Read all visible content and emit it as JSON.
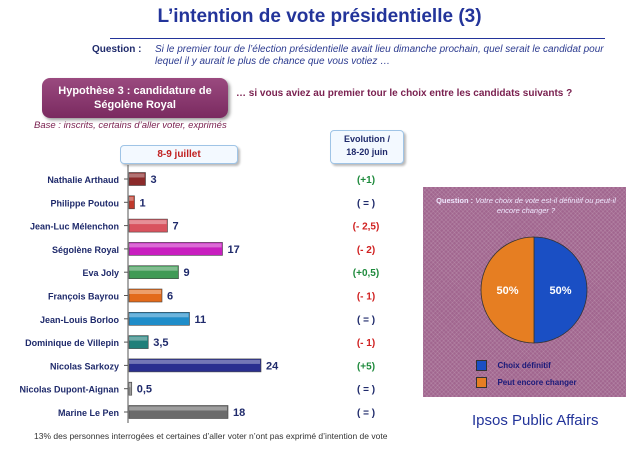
{
  "title": "L’intention de vote présidentielle (3)",
  "question": {
    "label": "Question :",
    "text": "Si le premier tour de l’élection présidentielle avait lieu dimanche prochain, quel serait le candidat pour lequel il y aurait le plus de chance que vous votiez …"
  },
  "hypothesis": {
    "line1": "Hypothèse 3 : candidature de",
    "line2": "Ségolène Royal",
    "prompt": "… si vous aviez au premier tour le choix entre les candidats suivants ?"
  },
  "base": "Base : inscrits, certains d’aller voter, exprimés",
  "date_label": "8-9 juillet",
  "evolution_label": {
    "line1": "Evolution /",
    "line2": "18-20 juin"
  },
  "chart_data": [
    {
      "type": "bar",
      "orientation": "horizontal",
      "categories": [
        "Nathalie Arthaud",
        "Philippe Poutou",
        "Jean-Luc Mélenchon",
        "Ségolène Royal",
        "Eva Joly",
        "François Bayrou",
        "Jean-Louis Borloo",
        "Dominique de Villepin",
        "Nicolas Sarkozy",
        "Nicolas Dupont-Aignan",
        "Marine Le Pen"
      ],
      "values": [
        3,
        1,
        7,
        17,
        9,
        6,
        11,
        3.5,
        24,
        0.5,
        18
      ],
      "value_labels": [
        "3",
        "1",
        "7",
        "17",
        "9",
        "6",
        "11",
        "3,5",
        "24",
        "0,5",
        "18"
      ],
      "colors": [
        "#8b2a2a",
        "#c0392b",
        "#d9535e",
        "#c81ebf",
        "#3f9a55",
        "#e36a1b",
        "#1f8dc9",
        "#1f7f7a",
        "#2a2f8f",
        "#9a9a9a",
        "#6b6b6b"
      ],
      "evolution": [
        "(+1)",
        "( = )",
        "(- 2,5)",
        "(- 2)",
        "(+0,5)",
        "(- 1)",
        "( = )",
        "(- 1)",
        "(+5)",
        "( = )",
        "( = )"
      ],
      "evolution_colors": [
        "#1e8a3c",
        "#1f2a6b",
        "#d02020",
        "#d02020",
        "#1e8a3c",
        "#d02020",
        "#1f2a6b",
        "#d02020",
        "#1e8a3c",
        "#1f2a6b",
        "#1f2a6b"
      ]
    },
    {
      "type": "pie",
      "title": "Question : Votre choix de vote est-il définitif ou peut-il encore changer ?",
      "categories": [
        "Choix définitif",
        "Peut encore changer"
      ],
      "values": [
        50,
        50
      ],
      "value_labels": [
        "50%",
        "50%"
      ],
      "colors": [
        "#1a4fc4",
        "#e67e22"
      ]
    }
  ],
  "pie_question_label": "Question :",
  "pie_question_text": " Votre choix de vote est-il définitif ou peut-il encore changer ?",
  "footnote": "13% des personnes interrogées et certaines d’aller voter n’ont pas exprimé d’intention de vote",
  "brand": "Ipsos Public Affairs"
}
